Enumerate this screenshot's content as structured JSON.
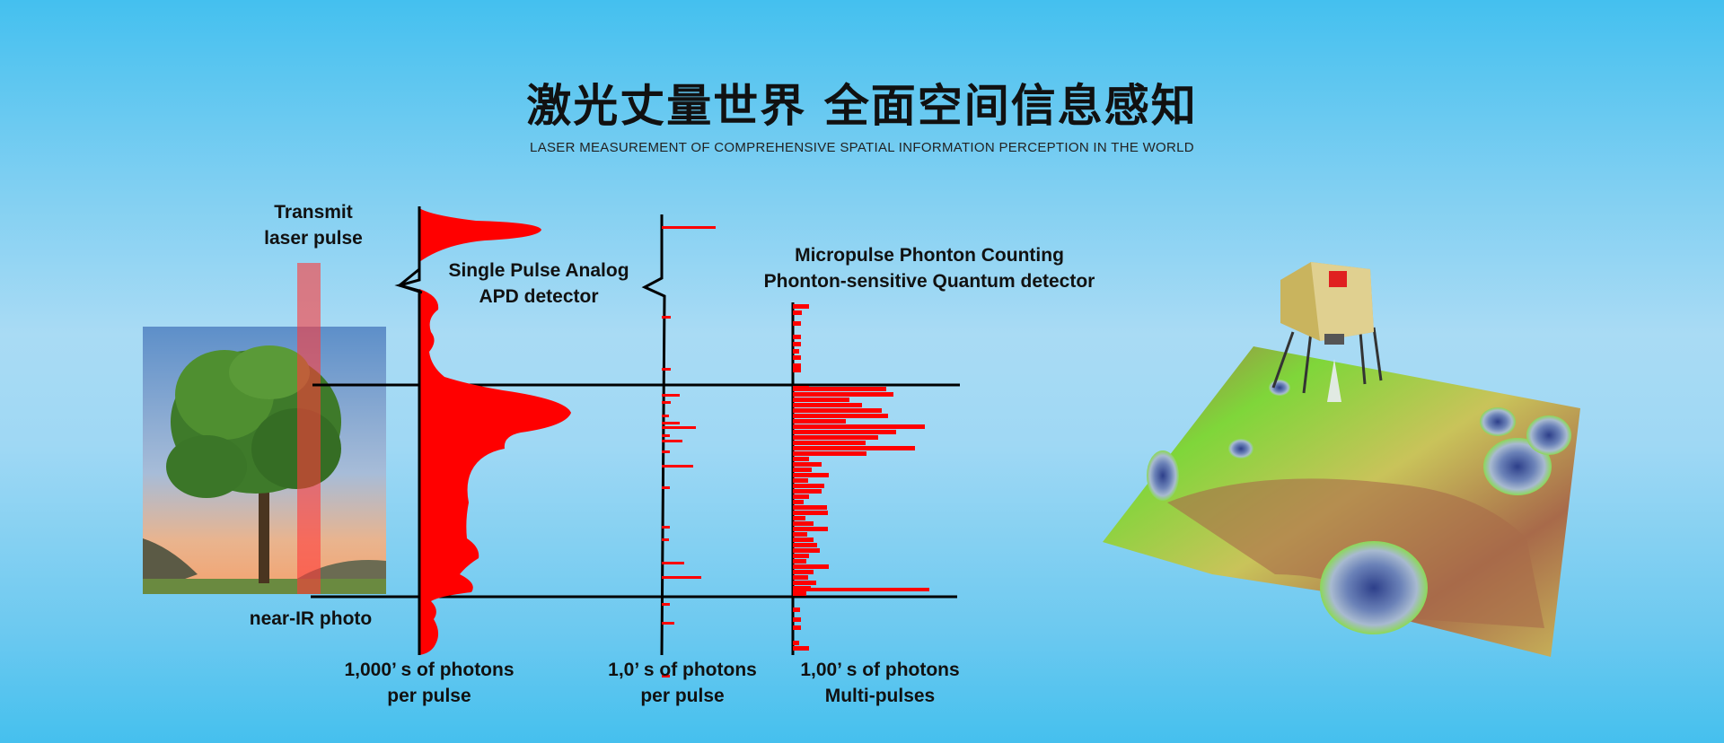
{
  "header": {
    "title": "激光丈量世界 全面空间信息感知",
    "subtitle": "LASER MEASUREMENT OF COMPREHENSIVE SPATIAL INFORMATION PERCEPTION IN THE WORLD"
  },
  "diagram": {
    "transmit_label": [
      "Transmit",
      "laser pulse"
    ],
    "photo_label": "near-IR photo",
    "analog_label": [
      "Single Pulse Analog",
      "APD detector"
    ],
    "micropulse_label": [
      "Micropulse Phonton Counting",
      "Phonton-sensitive Quantum detector"
    ],
    "axis_labels": [
      [
        "1,000’ s of photons",
        "per pulse"
      ],
      [
        "1,0’ s of photons",
        "per pulse"
      ],
      [
        "1,00’ s of photons",
        "Multi-pulses"
      ]
    ],
    "colors": {
      "signal": "#ff0000",
      "beam": "#ff5a5a",
      "axis": "#000000"
    }
  },
  "illustration": {
    "subject": "lunar-lander-on-terrain-elevation-map"
  }
}
